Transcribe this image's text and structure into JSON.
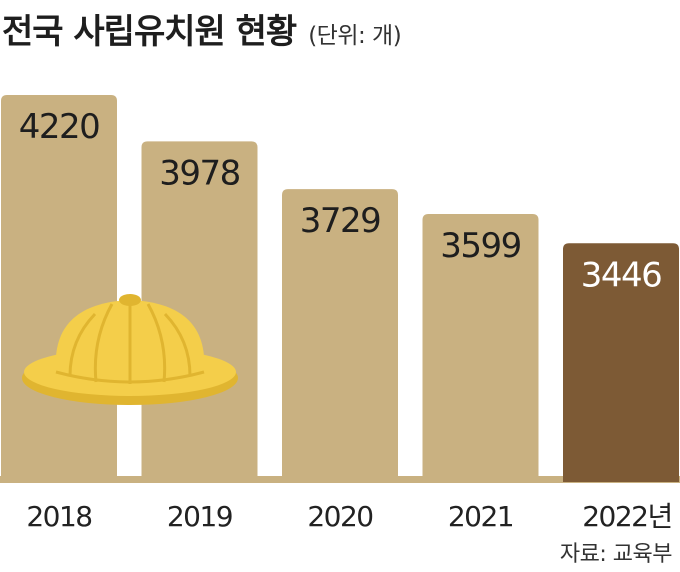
{
  "title": "전국 사립유치원 현황",
  "unit": "(단위: 개)",
  "source": "자료: 교육부",
  "colors": {
    "bar": "#c9b181",
    "highlight_bar": "#7d5a35",
    "baseline": "#c9b181",
    "label_dark": "#1e1e1e",
    "label_light": "#ffffff",
    "hat": "#f4ce4a",
    "hat_shade": "#e0b530"
  },
  "illustration": "yellow-hat-icon",
  "chart_data": {
    "type": "bar",
    "title": "전국 사립유치원 현황",
    "ylabel": "(단위: 개)",
    "categories": [
      "2018",
      "2019",
      "2020",
      "2021",
      "2022년"
    ],
    "values": [
      4220,
      3978,
      3729,
      3599,
      3446
    ],
    "highlight_index": 4,
    "ylim": [
      2200,
      4220
    ],
    "grid": false,
    "legend": "none"
  }
}
